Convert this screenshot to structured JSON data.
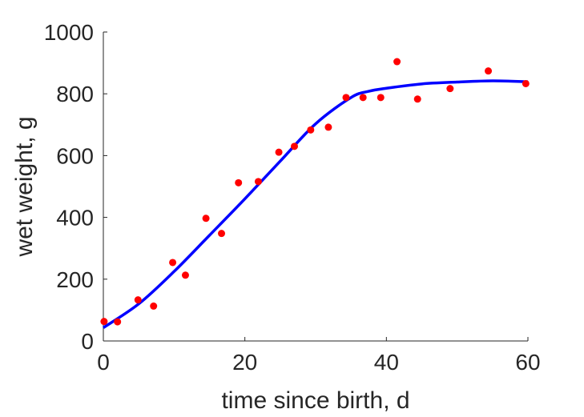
{
  "chart_data": {
    "type": "scatter",
    "title": "",
    "xlabel": "time since birth, d",
    "ylabel": "wet weight, g",
    "xlim": [
      0,
      60
    ],
    "ylim": [
      0,
      1000
    ],
    "xticks": [
      0,
      20,
      40,
      60
    ],
    "yticks": [
      0,
      200,
      400,
      600,
      800,
      1000
    ],
    "grid": false,
    "legend": "none",
    "series": [
      {
        "kind": "scatter",
        "color": "#ff0000",
        "x": [
          0.1,
          2.0,
          4.9,
          7.1,
          9.8,
          11.6,
          14.5,
          16.7,
          19.1,
          21.9,
          24.8,
          27.0,
          29.3,
          31.8,
          34.3,
          36.7,
          39.2,
          41.5,
          44.4,
          49.0,
          54.4,
          59.7
        ],
        "y": [
          63,
          62,
          133,
          113,
          254,
          213,
          397,
          348,
          512,
          516,
          611,
          630,
          683,
          692,
          788,
          788,
          788,
          904,
          783,
          817,
          874,
          833
        ]
      },
      {
        "kind": "line",
        "color": "#0000ff",
        "x": [
          0,
          5,
          10,
          15,
          20,
          25,
          30,
          35,
          37.5,
          40,
          45,
          50,
          55,
          60
        ],
        "y": [
          43,
          120,
          225,
          342,
          460,
          582,
          703,
          788,
          808,
          818,
          832,
          838,
          842,
          839
        ]
      }
    ]
  }
}
